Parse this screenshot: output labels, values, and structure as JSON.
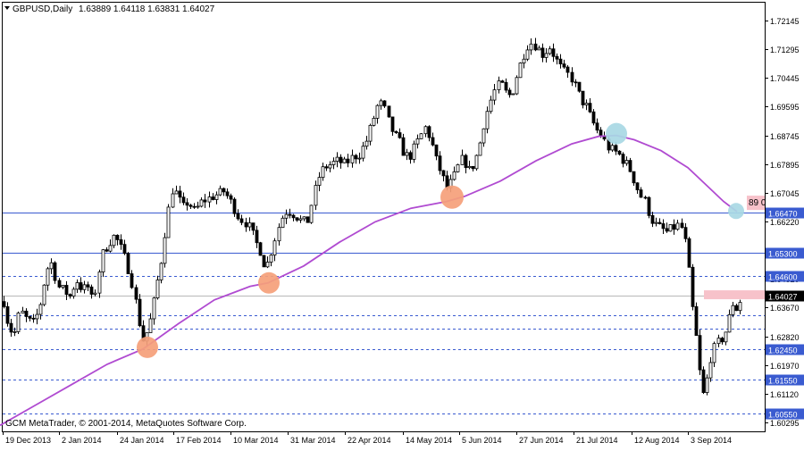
{
  "header": {
    "symbol": "GBPUSD,Daily",
    "ohlc": "1.63889 1.64118 1.63831 1.64027"
  },
  "copyright": "GCM MetaTrader, © 2001-2014, MetaQuotes Software Corp.",
  "colors": {
    "candle": "#000000",
    "ma_line": "#b04bd1",
    "hline": "#3a5bd0",
    "orange_marker": "#f5a07a",
    "blue_marker": "#a8d8e4",
    "price_tag_bg": "#f7c2ca",
    "current_price_bg": "#000000"
  },
  "chart_data": {
    "type": "candlestick",
    "y_axis_ticks": [
      "1.72145",
      "1.71295",
      "1.70445",
      "1.69595",
      "1.68745",
      "1.67895",
      "1.67045",
      "1.66220",
      "1.65370",
      "1.64520",
      "1.63670",
      "1.62820",
      "1.61970",
      "1.61120",
      "1.60295"
    ],
    "ylim": [
      1.6026,
      1.7232
    ],
    "x_tick_labels": [
      "19 Dec 2013",
      "2 Jan 2014",
      "24 Jan 2014",
      "17 Feb 2014",
      "10 Mar 2014",
      "31 Mar 2014",
      "22 Apr 2014",
      "14 May 2014",
      "5 Jun 2014",
      "27 Jun 2014",
      "21 Jul 2014",
      "12 Aug 2014",
      "3 Sep 2014"
    ],
    "horizontal_levels": [
      {
        "price": 1.6647,
        "label": "1.66470",
        "style": "solid"
      },
      {
        "price": 1.653,
        "label": "1.65300",
        "style": "solid"
      },
      {
        "price": 1.646,
        "label": "1.64600",
        "style": "dashed"
      },
      {
        "price": 1.6403,
        "label": "1.64027",
        "style": "current"
      },
      {
        "price": 1.6345,
        "label": "",
        "style": "dashed"
      },
      {
        "price": 1.6305,
        "label": "",
        "style": "dashed"
      },
      {
        "price": 1.6245,
        "label": "1.62450",
        "style": "dashed"
      },
      {
        "price": 1.6155,
        "label": "1.61550",
        "style": "dashed"
      },
      {
        "price": 1.6055,
        "label": "1.60550",
        "style": "dashed"
      }
    ],
    "price_tag_text": "89 0",
    "path_points": [
      [
        0,
        1.644
      ],
      [
        8,
        1.633
      ],
      [
        15,
        1.628
      ],
      [
        22,
        1.636
      ],
      [
        30,
        1.633
      ],
      [
        38,
        1.632
      ],
      [
        45,
        1.638
      ],
      [
        52,
        1.648
      ],
      [
        58,
        1.65
      ],
      [
        64,
        1.643
      ],
      [
        70,
        1.642
      ],
      [
        78,
        1.64
      ],
      [
        85,
        1.645
      ],
      [
        92,
        1.642
      ],
      [
        98,
        1.643
      ],
      [
        104,
        1.638
      ],
      [
        110,
        1.647
      ],
      [
        115,
        1.653
      ],
      [
        122,
        1.656
      ],
      [
        128,
        1.658
      ],
      [
        134,
        1.655
      ],
      [
        140,
        1.651
      ],
      [
        146,
        1.646
      ],
      [
        150,
        1.641
      ],
      [
        155,
        1.633
      ],
      [
        160,
        1.627
      ],
      [
        165,
        1.63
      ],
      [
        170,
        1.635
      ],
      [
        175,
        1.643
      ],
      [
        180,
        1.65
      ],
      [
        184,
        1.658
      ],
      [
        188,
        1.665
      ],
      [
        193,
        1.672
      ],
      [
        198,
        1.67
      ],
      [
        204,
        1.666
      ],
      [
        210,
        1.668
      ],
      [
        218,
        1.665
      ],
      [
        226,
        1.668
      ],
      [
        234,
        1.669
      ],
      [
        242,
        1.67
      ],
      [
        250,
        1.671
      ],
      [
        256,
        1.669
      ],
      [
        262,
        1.666
      ],
      [
        268,
        1.663
      ],
      [
        274,
        1.662
      ],
      [
        280,
        1.66
      ],
      [
        286,
        1.656
      ],
      [
        292,
        1.653
      ],
      [
        296,
        1.649
      ],
      [
        300,
        1.65
      ],
      [
        306,
        1.656
      ],
      [
        312,
        1.661
      ],
      [
        318,
        1.665
      ],
      [
        324,
        1.665
      ],
      [
        330,
        1.664
      ],
      [
        338,
        1.662
      ],
      [
        344,
        1.662
      ],
      [
        350,
        1.669
      ],
      [
        356,
        1.675
      ],
      [
        362,
        1.678
      ],
      [
        370,
        1.679
      ],
      [
        378,
        1.68
      ],
      [
        386,
        1.679
      ],
      [
        394,
        1.681
      ],
      [
        402,
        1.682
      ],
      [
        410,
        1.686
      ],
      [
        416,
        1.691
      ],
      [
        422,
        1.696
      ],
      [
        428,
        1.697
      ],
      [
        434,
        1.692
      ],
      [
        440,
        1.688
      ],
      [
        446,
        1.686
      ],
      [
        452,
        1.682
      ],
      [
        458,
        1.681
      ],
      [
        464,
        1.684
      ],
      [
        470,
        1.687
      ],
      [
        476,
        1.69
      ],
      [
        482,
        1.686
      ],
      [
        488,
        1.68
      ],
      [
        494,
        1.676
      ],
      [
        500,
        1.672
      ],
      [
        506,
        1.674
      ],
      [
        512,
        1.678
      ],
      [
        518,
        1.681
      ],
      [
        524,
        1.677
      ],
      [
        530,
        1.679
      ],
      [
        536,
        1.684
      ],
      [
        542,
        1.692
      ],
      [
        548,
        1.697
      ],
      [
        554,
        1.701
      ],
      [
        560,
        1.703
      ],
      [
        566,
        1.7
      ],
      [
        572,
        1.699
      ],
      [
        578,
        1.705
      ],
      [
        584,
        1.71
      ],
      [
        590,
        1.714
      ],
      [
        596,
        1.715
      ],
      [
        602,
        1.713
      ],
      [
        608,
        1.711
      ],
      [
        614,
        1.714
      ],
      [
        620,
        1.711
      ],
      [
        626,
        1.708
      ],
      [
        632,
        1.706
      ],
      [
        638,
        1.705
      ],
      [
        644,
        1.702
      ],
      [
        650,
        1.698
      ],
      [
        656,
        1.696
      ],
      [
        662,
        1.692
      ],
      [
        668,
        1.689
      ],
      [
        674,
        1.687
      ],
      [
        680,
        1.684
      ],
      [
        686,
        1.683
      ],
      [
        692,
        1.682
      ],
      [
        698,
        1.68
      ],
      [
        704,
        1.678
      ],
      [
        710,
        1.674
      ],
      [
        716,
        1.67
      ],
      [
        722,
        1.668
      ],
      [
        728,
        1.663
      ],
      [
        734,
        1.661
      ],
      [
        740,
        1.66
      ],
      [
        746,
        1.659
      ],
      [
        752,
        1.66
      ],
      [
        758,
        1.661
      ],
      [
        764,
        1.66
      ],
      [
        768,
        1.654
      ],
      [
        772,
        1.644
      ],
      [
        776,
        1.633
      ],
      [
        780,
        1.626
      ],
      [
        784,
        1.615
      ],
      [
        788,
        1.61
      ],
      [
        792,
        1.617
      ],
      [
        796,
        1.623
      ],
      [
        800,
        1.625
      ],
      [
        805,
        1.627
      ],
      [
        810,
        1.628
      ],
      [
        815,
        1.633
      ],
      [
        820,
        1.638
      ],
      [
        825,
        1.636
      ],
      [
        830,
        1.6403
      ]
    ],
    "ma_points": [
      [
        0,
        1.602
      ],
      [
        40,
        1.608
      ],
      [
        80,
        1.614
      ],
      [
        120,
        1.62
      ],
      [
        160,
        1.6245
      ],
      [
        200,
        1.632
      ],
      [
        240,
        1.639
      ],
      [
        280,
        1.643
      ],
      [
        300,
        1.644
      ],
      [
        340,
        1.649
      ],
      [
        380,
        1.656
      ],
      [
        420,
        1.662
      ],
      [
        460,
        1.666
      ],
      [
        500,
        1.668
      ],
      [
        520,
        1.6695
      ],
      [
        560,
        1.674
      ],
      [
        600,
        1.68
      ],
      [
        640,
        1.685
      ],
      [
        670,
        1.6872
      ],
      [
        690,
        1.6875
      ],
      [
        710,
        1.6862
      ],
      [
        740,
        1.683
      ],
      [
        770,
        1.678
      ],
      [
        790,
        1.673
      ],
      [
        810,
        1.668
      ],
      [
        825,
        1.665
      ]
    ],
    "markers": [
      {
        "type": "orange",
        "x": 165,
        "price": 1.625,
        "r": 12
      },
      {
        "type": "orange",
        "x": 301,
        "price": 1.644,
        "r": 12
      },
      {
        "type": "orange",
        "x": 506,
        "price": 1.6693,
        "r": 13
      },
      {
        "type": "blue",
        "x": 690,
        "price": 1.688,
        "r": 12
      },
      {
        "type": "blue",
        "x": 824,
        "price": 1.6652,
        "r": 9
      }
    ],
    "price_tag": {
      "x": 836,
      "price": 1.6684
    },
    "current_bar": {
      "x": 788,
      "price": 1.6405
    }
  }
}
